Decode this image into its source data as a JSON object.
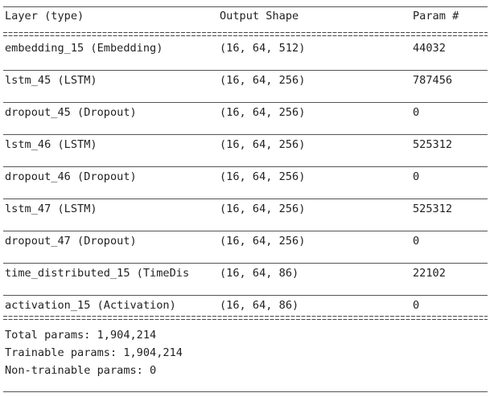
{
  "header": {
    "layer": "Layer (type)",
    "output_shape": "Output Shape",
    "params": "Param #"
  },
  "rows": [
    {
      "layer": "embedding_15 (Embedding)",
      "shape": "(16, 64, 512)",
      "params": "44032"
    },
    {
      "layer": "lstm_45 (LSTM)",
      "shape": "(16, 64, 256)",
      "params": "787456"
    },
    {
      "layer": "dropout_45 (Dropout)",
      "shape": "(16, 64, 256)",
      "params": "0"
    },
    {
      "layer": "lstm_46 (LSTM)",
      "shape": "(16, 64, 256)",
      "params": "525312"
    },
    {
      "layer": "dropout_46 (Dropout)",
      "shape": "(16, 64, 256)",
      "params": "0"
    },
    {
      "layer": "lstm_47 (LSTM)",
      "shape": "(16, 64, 256)",
      "params": "525312"
    },
    {
      "layer": "dropout_47 (Dropout)",
      "shape": "(16, 64, 256)",
      "params": "0"
    },
    {
      "layer": "time_distributed_15 (TimeDis",
      "shape": "(16, 64, 86)",
      "params": "22102"
    },
    {
      "layer": "activation_15 (Activation)",
      "shape": "(16, 64, 86)",
      "params": "0"
    }
  ],
  "totals": {
    "total": "Total params: 1,904,214",
    "trainable": "Trainable params: 1,904,214",
    "non_trainable": "Non-trainable params: 0"
  }
}
